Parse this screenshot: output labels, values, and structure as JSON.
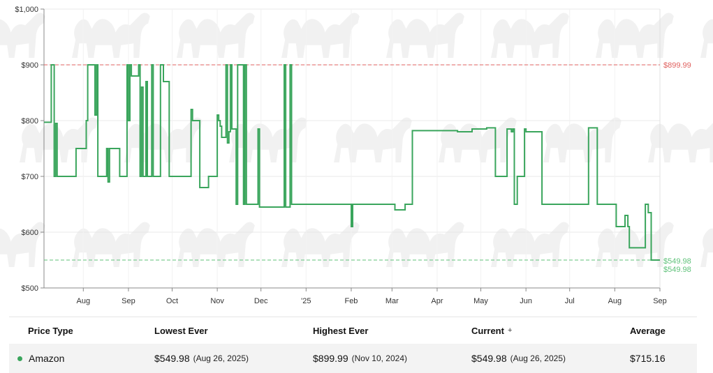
{
  "colors": {
    "line": "#3aa55c",
    "highest": "#e0615f",
    "lowest": "#5fc27a",
    "grid": "#e8e8e8"
  },
  "chart_data": {
    "type": "line",
    "ylim": [
      500,
      1000
    ],
    "y_ticks": [
      {
        "value": 500,
        "label": "$500"
      },
      {
        "value": 600,
        "label": "$600"
      },
      {
        "value": 700,
        "label": "$700"
      },
      {
        "value": 800,
        "label": "$800"
      },
      {
        "value": 900,
        "label": "$900"
      },
      {
        "value": 1000,
        "label": "$1,000"
      }
    ],
    "xlim": [
      "2024-07-05",
      "2025-09-01"
    ],
    "x_ticks": [
      {
        "date": "2024-08-01",
        "label": "Aug"
      },
      {
        "date": "2024-09-01",
        "label": "Sep"
      },
      {
        "date": "2024-10-01",
        "label": "Oct"
      },
      {
        "date": "2024-11-01",
        "label": "Nov"
      },
      {
        "date": "2024-12-01",
        "label": "Dec"
      },
      {
        "date": "2025-01-01",
        "label": "'25"
      },
      {
        "date": "2025-02-01",
        "label": "Feb"
      },
      {
        "date": "2025-03-01",
        "label": "Mar"
      },
      {
        "date": "2025-04-01",
        "label": "Apr"
      },
      {
        "date": "2025-05-01",
        "label": "May"
      },
      {
        "date": "2025-06-01",
        "label": "Jun"
      },
      {
        "date": "2025-07-01",
        "label": "Jul"
      },
      {
        "date": "2025-08-01",
        "label": "Aug"
      },
      {
        "date": "2025-09-01",
        "label": "Sep"
      }
    ],
    "reference_lines": [
      {
        "value": 899.99,
        "label": "$899.99"
      },
      {
        "value": 549.98,
        "label": "$549.98"
      }
    ],
    "series": [
      {
        "name": "Amazon",
        "points": [
          [
            "2024-07-05",
            797
          ],
          [
            "2024-07-10",
            900
          ],
          [
            "2024-07-12",
            700
          ],
          [
            "2024-07-13",
            795
          ],
          [
            "2024-07-14",
            700
          ],
          [
            "2024-07-27",
            750
          ],
          [
            "2024-08-03",
            800
          ],
          [
            "2024-08-04",
            900
          ],
          [
            "2024-08-09",
            810
          ],
          [
            "2024-08-10",
            900
          ],
          [
            "2024-08-11",
            700
          ],
          [
            "2024-08-17",
            750
          ],
          [
            "2024-08-18",
            690
          ],
          [
            "2024-08-19",
            750
          ],
          [
            "2024-08-26",
            700
          ],
          [
            "2024-08-31",
            900
          ],
          [
            "2024-09-01",
            800
          ],
          [
            "2024-09-02",
            900
          ],
          [
            "2024-09-03",
            880
          ],
          [
            "2024-09-08",
            900
          ],
          [
            "2024-09-09",
            700
          ],
          [
            "2024-09-10",
            860
          ],
          [
            "2024-09-11",
            700
          ],
          [
            "2024-09-13",
            870
          ],
          [
            "2024-09-14",
            700
          ],
          [
            "2024-09-17",
            900
          ],
          [
            "2024-09-18",
            700
          ],
          [
            "2024-09-23",
            900
          ],
          [
            "2024-09-25",
            870
          ],
          [
            "2024-09-29",
            700
          ],
          [
            "2024-10-14",
            820
          ],
          [
            "2024-10-15",
            800
          ],
          [
            "2024-10-20",
            680
          ],
          [
            "2024-10-26",
            700
          ],
          [
            "2024-11-01",
            810
          ],
          [
            "2024-11-02",
            800
          ],
          [
            "2024-11-03",
            790
          ],
          [
            "2024-11-04",
            770
          ],
          [
            "2024-11-07",
            900
          ],
          [
            "2024-11-08",
            760
          ],
          [
            "2024-11-09",
            780
          ],
          [
            "2024-11-10",
            900
          ],
          [
            "2024-11-11",
            785
          ],
          [
            "2024-11-14",
            650
          ],
          [
            "2024-11-15",
            900
          ],
          [
            "2024-11-19",
            650
          ],
          [
            "2024-11-20",
            900
          ],
          [
            "2024-11-21",
            650
          ],
          [
            "2024-11-29",
            785
          ],
          [
            "2024-11-30",
            645
          ],
          [
            "2024-12-17",
            900
          ],
          [
            "2024-12-18",
            645
          ],
          [
            "2024-12-21",
            900
          ],
          [
            "2024-12-22",
            650
          ],
          [
            "2025-02-01",
            610
          ],
          [
            "2025-02-02",
            650
          ],
          [
            "2025-03-03",
            640
          ],
          [
            "2025-03-10",
            650
          ],
          [
            "2025-03-15",
            782
          ],
          [
            "2025-04-15",
            780
          ],
          [
            "2025-04-25",
            785
          ],
          [
            "2025-05-05",
            787
          ],
          [
            "2025-05-11",
            700
          ],
          [
            "2025-05-19",
            785
          ],
          [
            "2025-05-22",
            780
          ],
          [
            "2025-05-23",
            785
          ],
          [
            "2025-05-24",
            650
          ],
          [
            "2025-05-26",
            700
          ],
          [
            "2025-05-31",
            785
          ],
          [
            "2025-06-01",
            780
          ],
          [
            "2025-06-12",
            650
          ],
          [
            "2025-07-14",
            787
          ],
          [
            "2025-07-20",
            650
          ],
          [
            "2025-08-02",
            610
          ],
          [
            "2025-08-08",
            630
          ],
          [
            "2025-08-10",
            610
          ],
          [
            "2025-08-11",
            572
          ],
          [
            "2025-08-22",
            650
          ],
          [
            "2025-08-24",
            635
          ],
          [
            "2025-08-26",
            549.98
          ],
          [
            "2025-09-01",
            549.98
          ]
        ]
      }
    ]
  },
  "table": {
    "headers": {
      "price_type": "Price Type",
      "lowest": "Lowest Ever",
      "highest": "Highest Ever",
      "current": "Current",
      "current_plus": "+",
      "average": "Average"
    },
    "row": {
      "type": "Amazon",
      "lowest_price": "$549.98",
      "lowest_date": "(Aug 26, 2025)",
      "highest_price": "$899.99",
      "highest_date": "(Nov 10, 2024)",
      "current_price": "$549.98",
      "current_date": "(Aug 26, 2025)",
      "average": "$715.16"
    }
  }
}
